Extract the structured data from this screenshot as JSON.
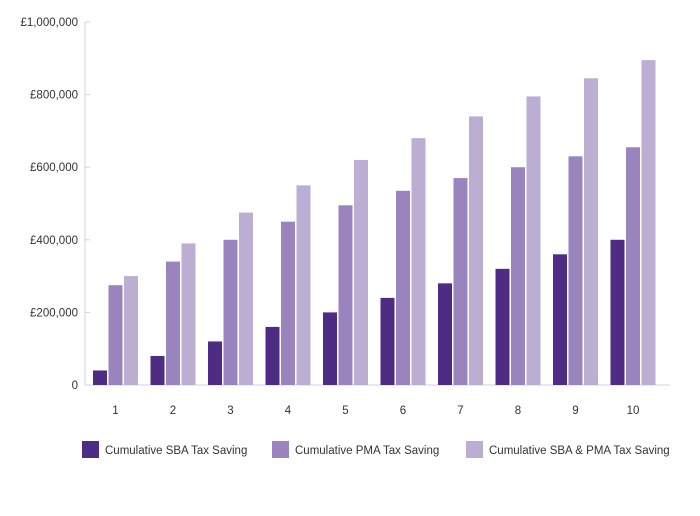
{
  "chart_data": {
    "type": "bar",
    "categories": [
      "1",
      "2",
      "3",
      "4",
      "5",
      "6",
      "7",
      "8",
      "9",
      "10"
    ],
    "series": [
      {
        "name": "Cumulative SBA Tax Saving",
        "color": "#4f2c84",
        "values": [
          40000,
          80000,
          120000,
          160000,
          200000,
          240000,
          280000,
          320000,
          360000,
          400000
        ]
      },
      {
        "name": "Cumulative PMA Tax Saving",
        "color": "#9a84bd",
        "values": [
          275000,
          340000,
          400000,
          450000,
          495000,
          535000,
          570000,
          600000,
          630000,
          655000
        ]
      },
      {
        "name": "Cumulative SBA & PMA Tax Saving",
        "color": "#bcaed3",
        "values": [
          300000,
          390000,
          475000,
          550000,
          620000,
          680000,
          740000,
          795000,
          845000,
          895000
        ]
      }
    ],
    "yticks": [
      "0",
      "£200,000",
      "£400,000",
      "£600,000",
      "£800,000",
      "£1,000,000"
    ],
    "ylim": [
      0,
      1000000
    ],
    "title": "",
    "xlabel": "",
    "ylabel": "",
    "legend_position": "bottom",
    "grid": false
  }
}
